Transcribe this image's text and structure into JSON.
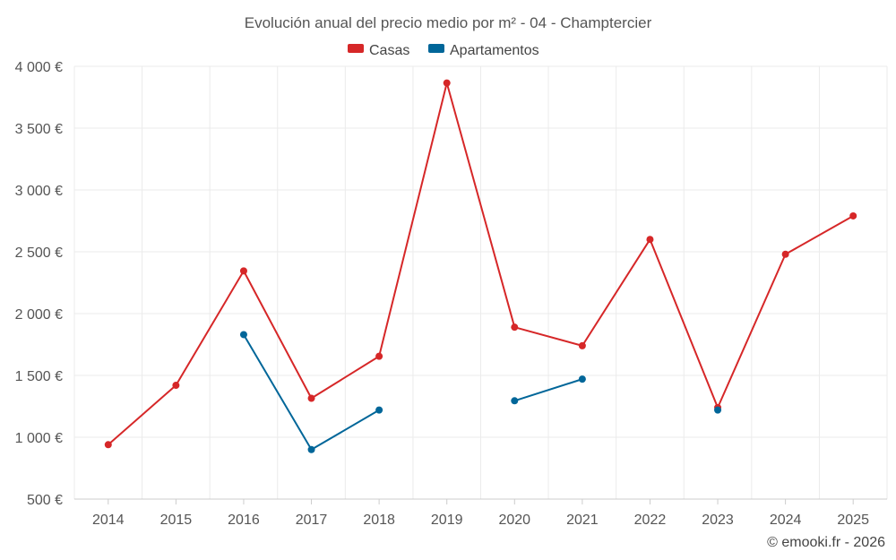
{
  "chart_data": {
    "type": "line",
    "title": "Evolución anual del precio medio por m² - 04 - Champtercier",
    "categories": [
      "2014",
      "2015",
      "2016",
      "2017",
      "2018",
      "2019",
      "2020",
      "2021",
      "2022",
      "2023",
      "2024",
      "2025"
    ],
    "ylim": [
      500,
      4000
    ],
    "yticks": [
      500,
      1000,
      1500,
      2000,
      2500,
      3000,
      3500,
      4000
    ],
    "ytick_labels": [
      "500 €",
      "1 000 €",
      "1 500 €",
      "2 000 €",
      "2 500 €",
      "3 000 €",
      "3 500 €",
      "4 000 €"
    ],
    "xlabel": "",
    "ylabel": "",
    "grid": true,
    "legend_position": "top-center",
    "series": [
      {
        "name": "Casas",
        "color": "#d62728",
        "values": [
          940,
          1420,
          2345,
          1315,
          1655,
          3865,
          1890,
          1740,
          2600,
          1240,
          2480,
          2790
        ]
      },
      {
        "name": "Apartamentos",
        "color": "#006699",
        "values": [
          null,
          null,
          1830,
          900,
          1220,
          null,
          1295,
          1470,
          null,
          1220,
          null,
          null
        ]
      }
    ]
  },
  "credit": "© emooki.fr - 2026"
}
